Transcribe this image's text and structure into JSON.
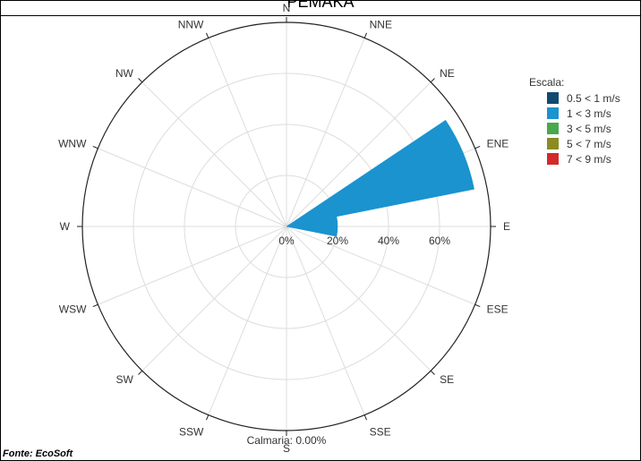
{
  "title": "PEMAKA",
  "source": "Fonte: EcoSoft",
  "chart_data": {
    "type": "polar-bar",
    "directions": [
      "N",
      "NNE",
      "NE",
      "ENE",
      "E",
      "ESE",
      "SE",
      "SSE",
      "S",
      "SSW",
      "SW",
      "WSW",
      "W",
      "WNW",
      "NW",
      "NNW"
    ],
    "radial_ticks": [
      "0%",
      "20%",
      "40%",
      "60%"
    ],
    "radial_tick_values": [
      0,
      20,
      40,
      60
    ],
    "rmax": 80,
    "calm_label": "Calmaria: 0.00%",
    "legend_title": "Escala:",
    "legend": [
      {
        "label": "0.5 < 1 m/s",
        "color": "#114a6e"
      },
      {
        "label": "1 < 3 m/s",
        "color": "#1a93cf"
      },
      {
        "label": "3 < 5 m/s",
        "color": "#48a84e"
      },
      {
        "label": "5 < 7 m/s",
        "color": "#8a8c22"
      },
      {
        "label": "7 < 9 m/s",
        "color": "#d22a2a"
      }
    ],
    "series": [
      {
        "name": "1 < 3 m/s",
        "color": "#1a93cf",
        "values": {
          "ENE": 75,
          "E": 20
        }
      }
    ]
  }
}
